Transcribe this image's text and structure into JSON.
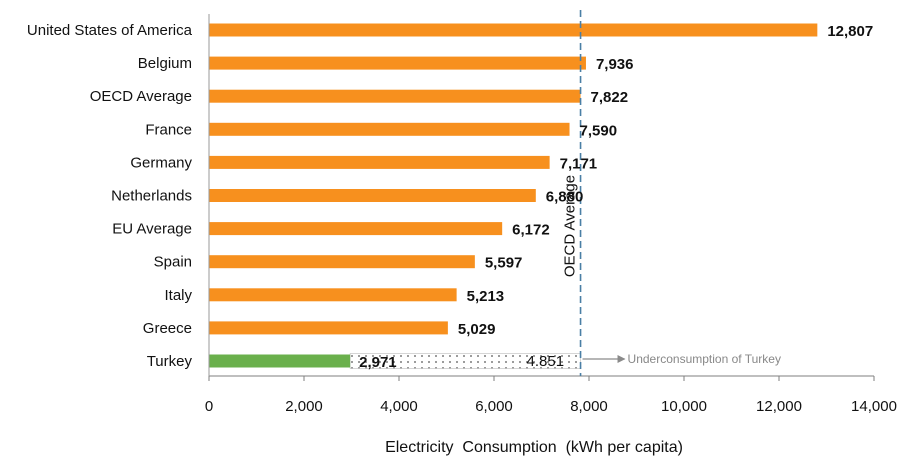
{
  "chart_data": {
    "type": "bar",
    "orientation": "horizontal",
    "categories": [
      "United States of America",
      "Belgium",
      "OECD Average",
      "France",
      "Germany",
      "Netherlands",
      "EU Average",
      "Spain",
      "Italy",
      "Greece",
      "Turkey"
    ],
    "values": [
      12807,
      7936,
      7822,
      7590,
      7171,
      6880,
      6172,
      5597,
      5213,
      5029,
      2971
    ],
    "value_labels": [
      "12,807",
      "7,936",
      "7,822",
      "7,590",
      "7,171",
      "6,880",
      "6,172",
      "5,597",
      "5,213",
      "5,029",
      "2,971"
    ],
    "xlabel": "Electricity  Consumption  (kWh per capita)",
    "xlim": [
      0,
      14000
    ],
    "xticks": [
      0,
      2000,
      4000,
      6000,
      8000,
      10000,
      12000,
      14000
    ],
    "xtick_labels": [
      "0",
      "2,000",
      "4,000",
      "6,000",
      "8,000",
      "10,000",
      "12,000",
      "14,000"
    ],
    "grid": false,
    "colors": {
      "bar": "#f7901e",
      "highlight": "#6ab04c",
      "reference_line": "#4a7fa5"
    },
    "reference_line": {
      "value": 7822,
      "label": "OECD Average"
    },
    "gap": {
      "category": "Turkey",
      "from": 2971,
      "to": 7822,
      "label": "4.851"
    },
    "annotation": {
      "text": "Underconsumption of Turkey"
    }
  }
}
